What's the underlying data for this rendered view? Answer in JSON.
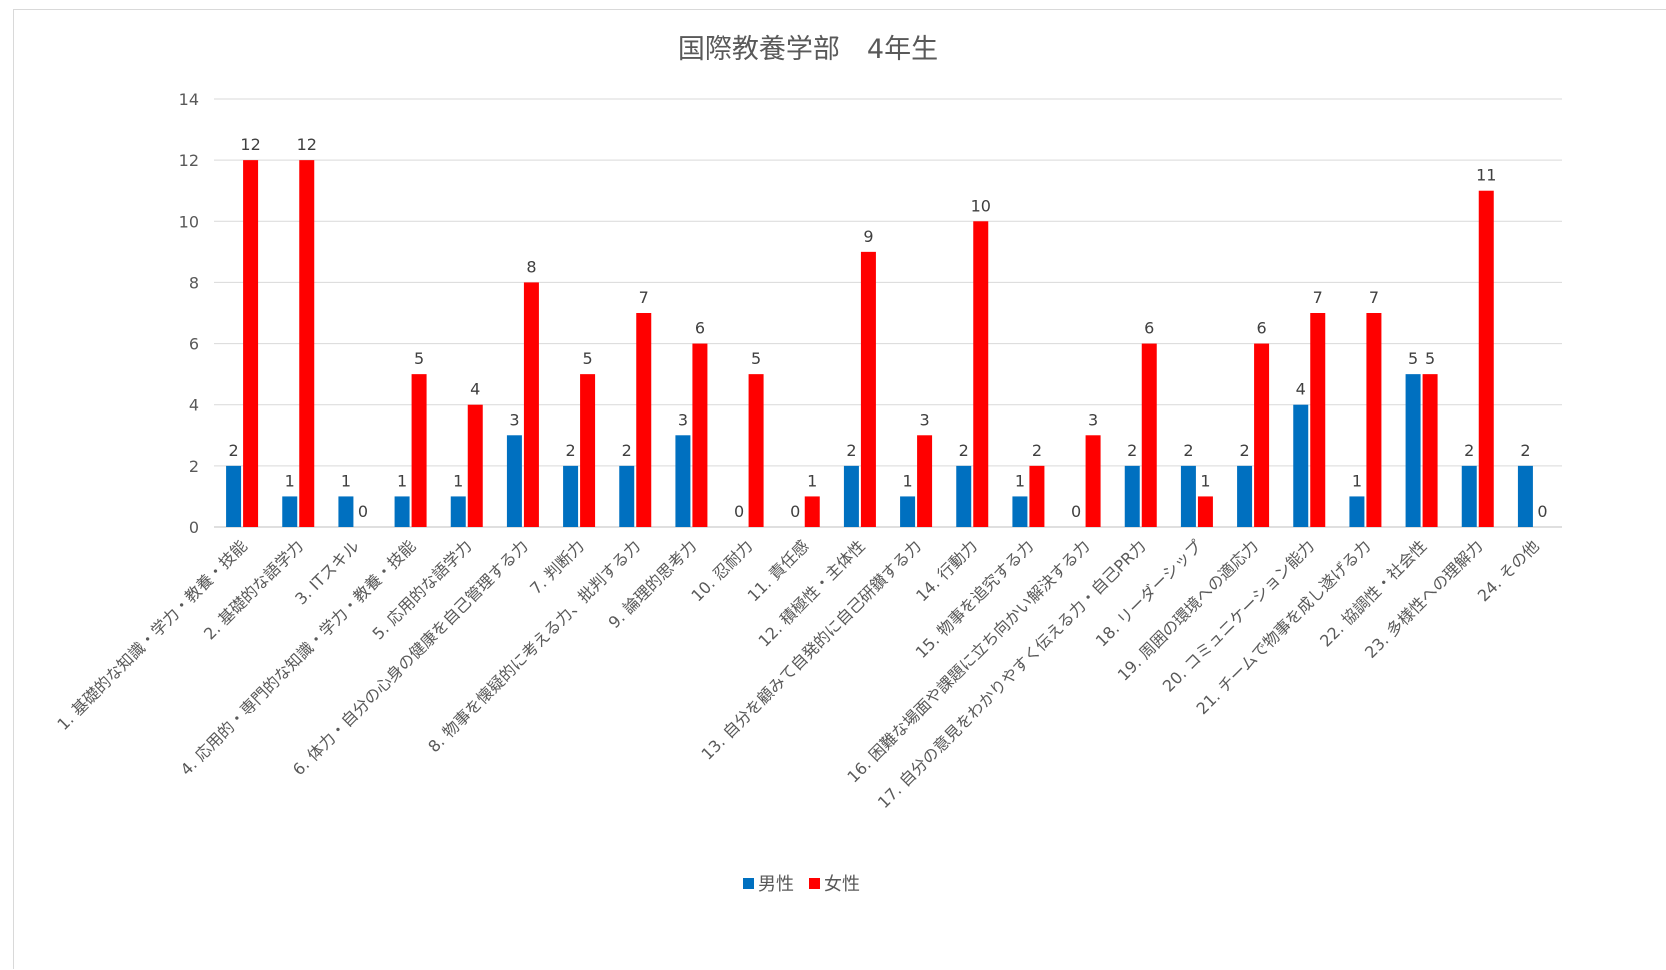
{
  "chart_data": {
    "type": "bar",
    "title": "国際教養学部　4年生",
    "xlabel": "",
    "ylabel": "",
    "ylim": [
      0,
      14
    ],
    "yticks": [
      0,
      2,
      4,
      6,
      8,
      10,
      12,
      14
    ],
    "grid": true,
    "legend_position": "bottom",
    "categories": [
      "1. 基礎的な知識・学力・教養・技能",
      "2. 基礎的な語学力",
      "3. ITスキル",
      "4. 応用的・専門的な知識・学力・教養・技能",
      "5. 応用的な語学力",
      "6. 体力・自分の心身の健康を自己管理する力",
      "7. 判断力",
      "8. 物事を懐疑的に考える力、批判する力",
      "9. 論理的思考力",
      "10. 忍耐力",
      "11. 責任感",
      "12. 積極性・主体性",
      "13. 自分を顧みて自発的に自己研鑚する力",
      "14. 行動力",
      "15. 物事を追究する力",
      "16. 困難な場面や課題に立ち向かい解決する力",
      "17. 自分の意見をわかりやすく伝える力・自己PR力",
      "18. リーダーシップ",
      "19. 周囲の環境への適応力",
      "20. コミュニケーション能力",
      "21. チームで物事を成し遂げる力",
      "22. 協調性・社会性",
      "23. 多様性への理解力",
      "24. その他"
    ],
    "series": [
      {
        "name": "男性",
        "color": "#0070C0",
        "values": [
          2,
          1,
          1,
          1,
          1,
          3,
          2,
          2,
          3,
          0,
          0,
          2,
          1,
          2,
          1,
          0,
          2,
          2,
          2,
          4,
          1,
          5,
          2,
          2
        ]
      },
      {
        "name": "女性",
        "color": "#FF0000",
        "values": [
          12,
          12,
          0,
          5,
          4,
          8,
          5,
          7,
          6,
          5,
          1,
          9,
          3,
          10,
          2,
          3,
          6,
          1,
          6,
          7,
          7,
          5,
          11,
          0
        ]
      }
    ]
  }
}
